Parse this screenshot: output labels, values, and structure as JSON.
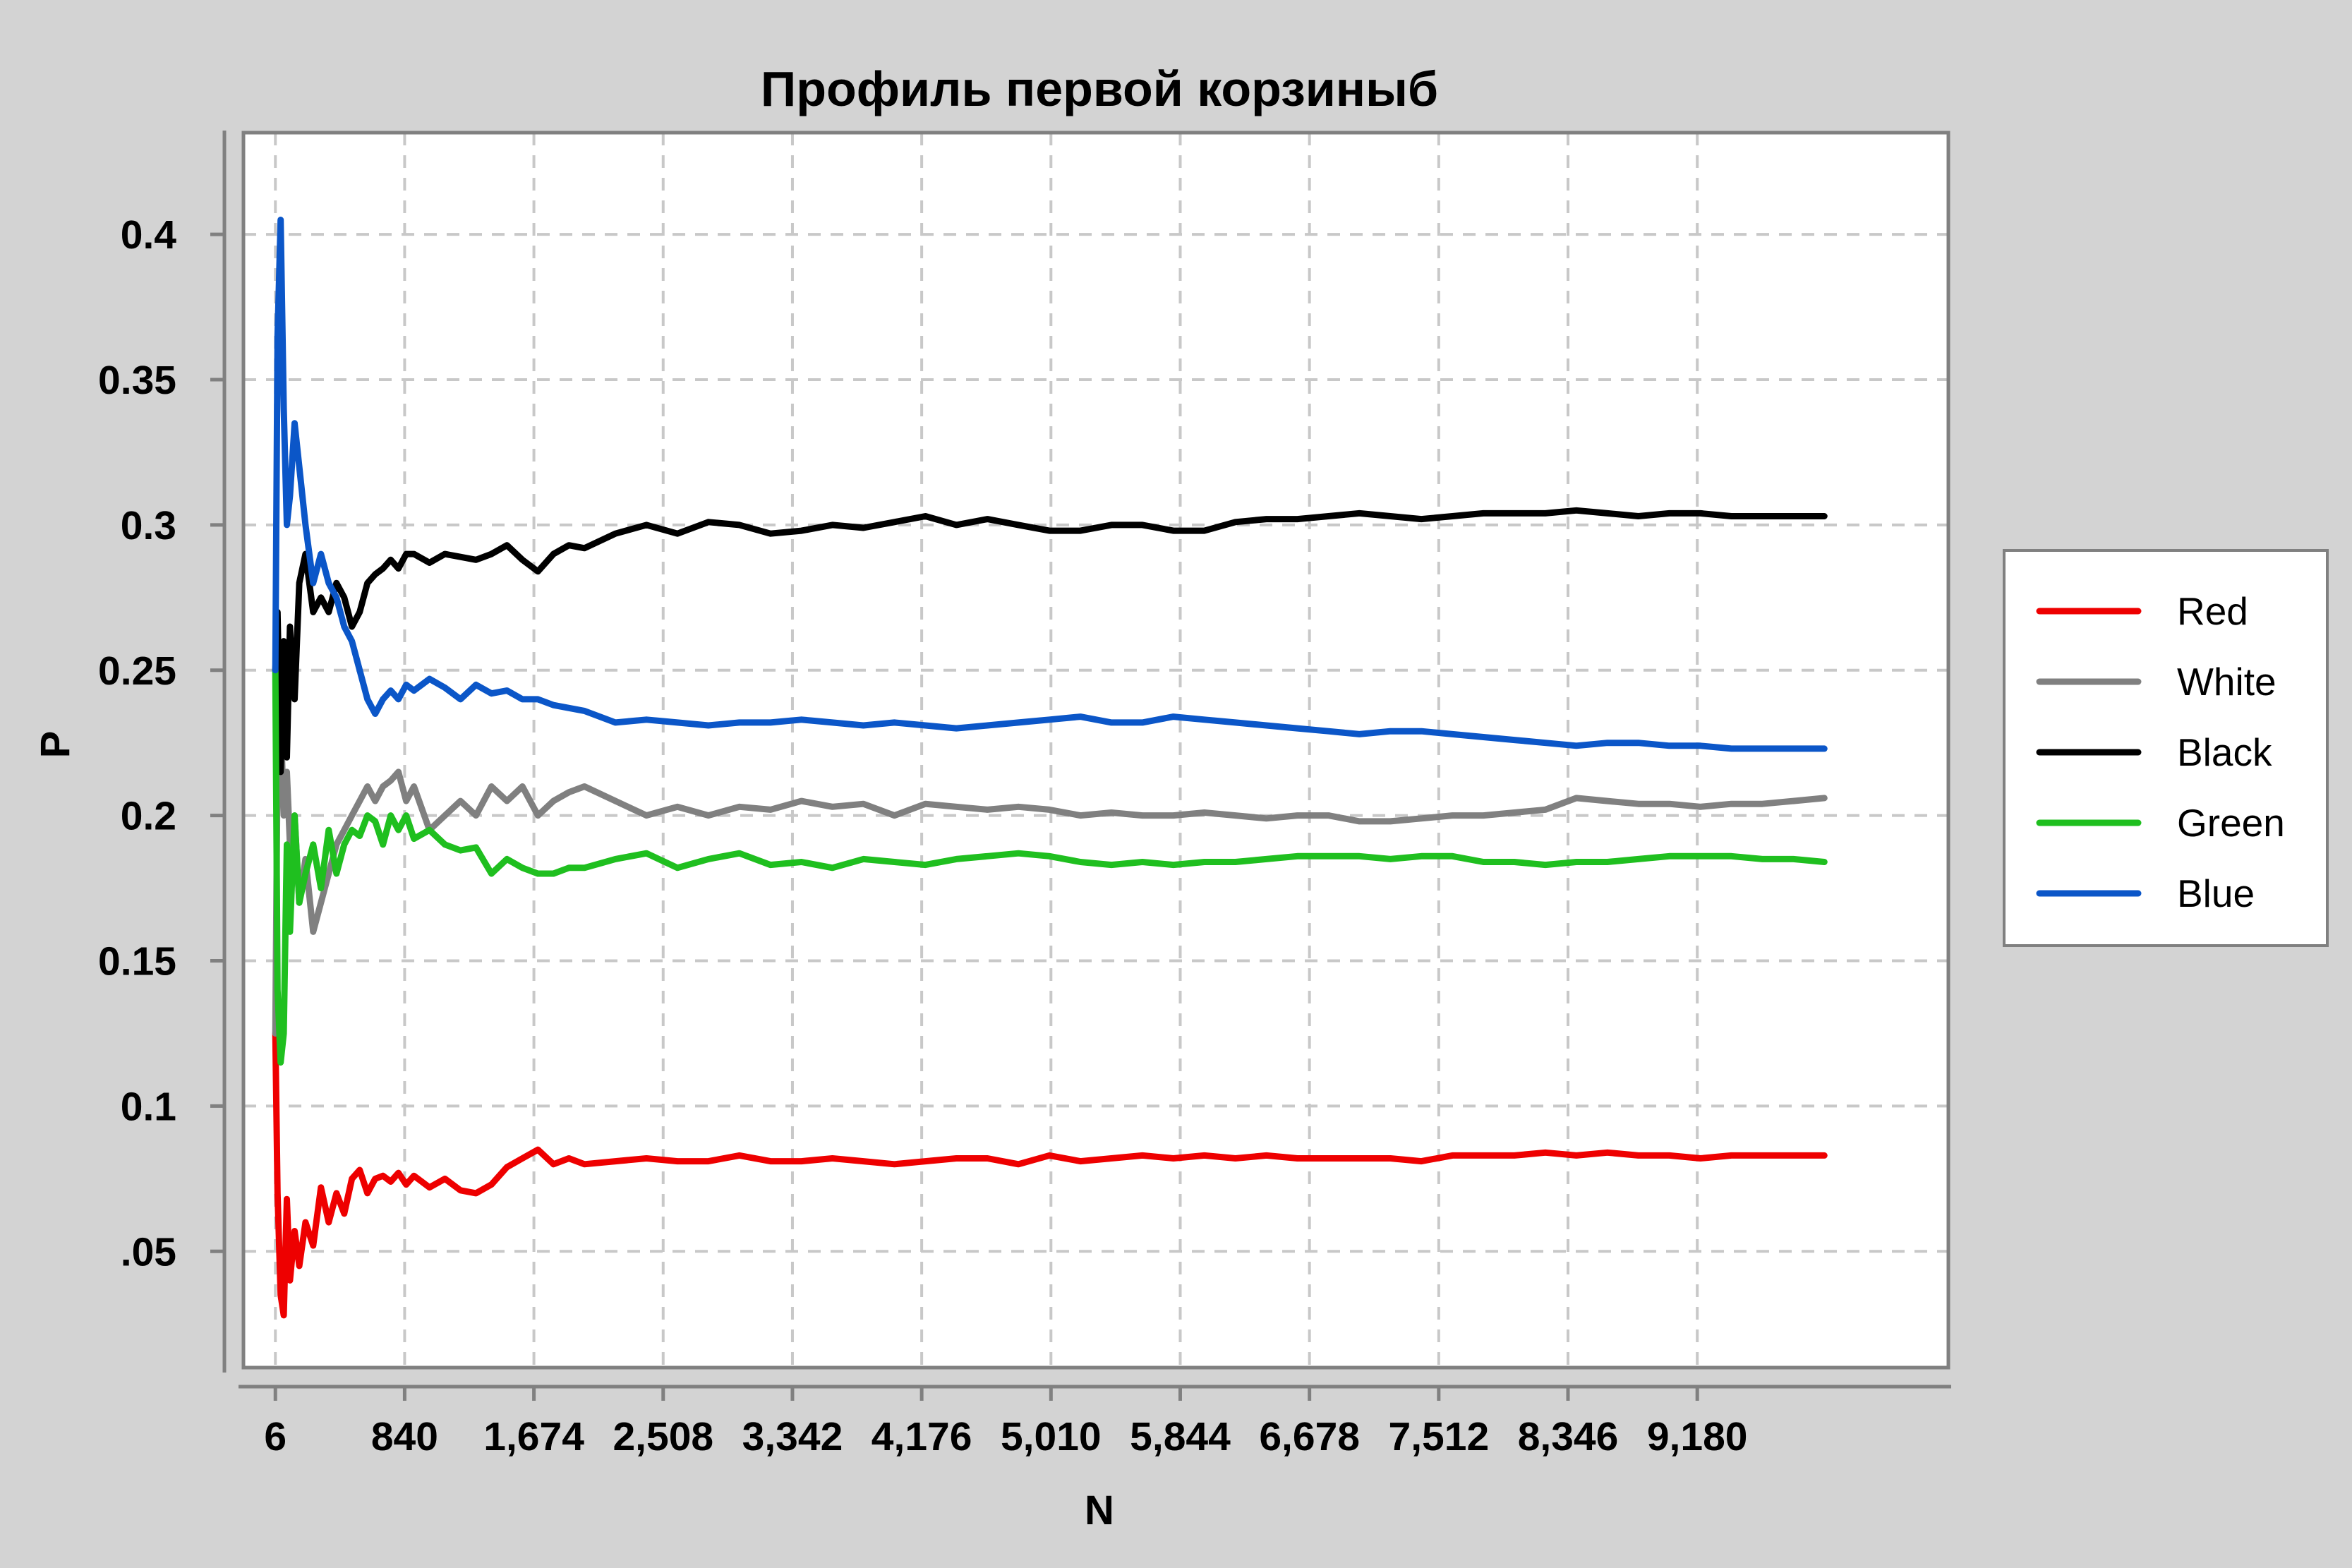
{
  "colors": {
    "background": "#d3d3d3",
    "plot_background": "#ffffff",
    "frame": "#808080",
    "grid": "#c8c8c8"
  },
  "chart_data": {
    "type": "line",
    "title": "Профиль первой корзиныб",
    "xlabel": "N",
    "ylabel": "P",
    "xlim": [
      -200,
      10800
    ],
    "ylim": [
      0.01,
      0.435
    ],
    "x_ticks": [
      6,
      840,
      1674,
      2508,
      3342,
      4176,
      5010,
      5844,
      6678,
      7512,
      8346,
      9180
    ],
    "x_tick_labels": [
      "6",
      "840",
      "1,674",
      "2,508",
      "3,342",
      "4,176",
      "5,010",
      "5,844",
      "6,678",
      "7,512",
      "8,346",
      "9,180"
    ],
    "y_ticks": [
      0.05,
      0.1,
      0.15,
      0.2,
      0.25,
      0.3,
      0.35,
      0.4
    ],
    "y_tick_labels": [
      ".05",
      "0.1",
      "0.15",
      "0.2",
      "0.25",
      "0.3",
      "0.35",
      "0.4"
    ],
    "grid": true,
    "grid_style": "dashed",
    "legend_position": "right",
    "series": [
      {
        "name": "Red",
        "color": "#ee0000",
        "x": [
          6,
          20,
          40,
          60,
          80,
          100,
          130,
          160,
          200,
          250,
          300,
          350,
          400,
          450,
          500,
          550,
          600,
          650,
          700,
          750,
          800,
          850,
          900,
          1000,
          1100,
          1200,
          1300,
          1400,
          1500,
          1600,
          1700,
          1800,
          1900,
          2000,
          2200,
          2400,
          2600,
          2800,
          3000,
          3200,
          3400,
          3600,
          3800,
          4000,
          4200,
          4400,
          4600,
          4800,
          5000,
          5200,
          5400,
          5600,
          5800,
          6000,
          6200,
          6400,
          6600,
          6800,
          7000,
          7200,
          7400,
          7600,
          7800,
          8000,
          8200,
          8400,
          8600,
          8800,
          9000,
          9200,
          9400,
          9600,
          9800,
          10000
        ],
        "y": [
          0.125,
          0.07,
          0.035,
          0.028,
          0.068,
          0.04,
          0.057,
          0.045,
          0.06,
          0.052,
          0.072,
          0.06,
          0.07,
          0.063,
          0.075,
          0.078,
          0.07,
          0.075,
          0.076,
          0.074,
          0.077,
          0.073,
          0.076,
          0.072,
          0.075,
          0.071,
          0.07,
          0.073,
          0.079,
          0.082,
          0.085,
          0.08,
          0.082,
          0.08,
          0.081,
          0.082,
          0.081,
          0.081,
          0.083,
          0.081,
          0.081,
          0.082,
          0.081,
          0.08,
          0.081,
          0.082,
          0.082,
          0.08,
          0.083,
          0.081,
          0.082,
          0.083,
          0.082,
          0.083,
          0.082,
          0.083,
          0.082,
          0.082,
          0.082,
          0.082,
          0.081,
          0.083,
          0.083,
          0.083,
          0.084,
          0.083,
          0.084,
          0.083,
          0.083,
          0.082,
          0.083,
          0.083,
          0.083,
          0.083
        ]
      },
      {
        "name": "White",
        "color": "#808080",
        "x": [
          6,
          20,
          40,
          60,
          80,
          100,
          130,
          160,
          200,
          250,
          300,
          350,
          400,
          450,
          500,
          550,
          600,
          650,
          700,
          750,
          800,
          850,
          900,
          1000,
          1100,
          1200,
          1300,
          1400,
          1500,
          1600,
          1700,
          1800,
          1900,
          2000,
          2200,
          2400,
          2600,
          2800,
          3000,
          3200,
          3400,
          3600,
          3800,
          4000,
          4200,
          4400,
          4600,
          4800,
          5000,
          5200,
          5400,
          5600,
          5800,
          6000,
          6200,
          6400,
          6600,
          6800,
          7000,
          7200,
          7400,
          7600,
          7800,
          8000,
          8200,
          8400,
          8600,
          8800,
          9000,
          9200,
          9400,
          9600,
          9800,
          10000
        ],
        "y": [
          0.125,
          0.22,
          0.235,
          0.2,
          0.215,
          0.19,
          0.2,
          0.17,
          0.185,
          0.16,
          0.17,
          0.18,
          0.19,
          0.195,
          0.2,
          0.205,
          0.21,
          0.205,
          0.21,
          0.212,
          0.215,
          0.205,
          0.21,
          0.195,
          0.2,
          0.205,
          0.2,
          0.21,
          0.205,
          0.21,
          0.2,
          0.205,
          0.208,
          0.21,
          0.205,
          0.2,
          0.203,
          0.2,
          0.203,
          0.202,
          0.205,
          0.203,
          0.204,
          0.2,
          0.204,
          0.203,
          0.202,
          0.203,
          0.202,
          0.2,
          0.201,
          0.2,
          0.2,
          0.201,
          0.2,
          0.199,
          0.2,
          0.2,
          0.198,
          0.198,
          0.199,
          0.2,
          0.2,
          0.201,
          0.202,
          0.206,
          0.205,
          0.204,
          0.204,
          0.203,
          0.204,
          0.204,
          0.205,
          0.206
        ]
      },
      {
        "name": "Black",
        "color": "#000000",
        "x": [
          6,
          20,
          40,
          60,
          80,
          100,
          130,
          160,
          200,
          250,
          300,
          350,
          400,
          450,
          500,
          550,
          600,
          650,
          700,
          750,
          800,
          850,
          900,
          1000,
          1100,
          1200,
          1300,
          1400,
          1500,
          1600,
          1700,
          1800,
          1900,
          2000,
          2200,
          2400,
          2600,
          2800,
          3000,
          3200,
          3400,
          3600,
          3800,
          4000,
          4200,
          4400,
          4600,
          4800,
          5000,
          5200,
          5400,
          5600,
          5800,
          6000,
          6200,
          6400,
          6600,
          6800,
          7000,
          7200,
          7400,
          7600,
          7800,
          8000,
          8200,
          8400,
          8600,
          8800,
          9000,
          9200,
          9400,
          9600,
          9800,
          10000
        ],
        "y": [
          0.25,
          0.27,
          0.215,
          0.26,
          0.22,
          0.265,
          0.24,
          0.28,
          0.29,
          0.27,
          0.275,
          0.27,
          0.28,
          0.275,
          0.265,
          0.27,
          0.28,
          0.283,
          0.285,
          0.288,
          0.285,
          0.29,
          0.29,
          0.287,
          0.29,
          0.289,
          0.288,
          0.29,
          0.293,
          0.288,
          0.284,
          0.29,
          0.293,
          0.292,
          0.297,
          0.3,
          0.297,
          0.301,
          0.3,
          0.297,
          0.298,
          0.3,
          0.299,
          0.301,
          0.303,
          0.3,
          0.302,
          0.3,
          0.298,
          0.298,
          0.3,
          0.3,
          0.298,
          0.298,
          0.301,
          0.302,
          0.302,
          0.303,
          0.304,
          0.303,
          0.302,
          0.303,
          0.304,
          0.304,
          0.304,
          0.305,
          0.304,
          0.303,
          0.304,
          0.304,
          0.303,
          0.303,
          0.303,
          0.303
        ]
      },
      {
        "name": "Green",
        "color": "#1fbf1f",
        "x": [
          6,
          20,
          40,
          60,
          80,
          100,
          130,
          160,
          200,
          250,
          300,
          350,
          400,
          450,
          500,
          550,
          600,
          650,
          700,
          750,
          800,
          850,
          900,
          1000,
          1100,
          1200,
          1300,
          1400,
          1500,
          1600,
          1700,
          1800,
          1900,
          2000,
          2200,
          2400,
          2600,
          2800,
          3000,
          3200,
          3400,
          3600,
          3800,
          4000,
          4200,
          4400,
          4600,
          4800,
          5000,
          5200,
          5400,
          5600,
          5800,
          6000,
          6200,
          6400,
          6600,
          6800,
          7000,
          7200,
          7400,
          7600,
          7800,
          8000,
          8200,
          8400,
          8600,
          8800,
          9000,
          9200,
          9400,
          9600,
          9800,
          10000
        ],
        "y": [
          0.25,
          0.14,
          0.115,
          0.125,
          0.19,
          0.16,
          0.2,
          0.17,
          0.18,
          0.19,
          0.175,
          0.195,
          0.18,
          0.19,
          0.195,
          0.193,
          0.2,
          0.198,
          0.19,
          0.2,
          0.195,
          0.2,
          0.192,
          0.195,
          0.19,
          0.188,
          0.189,
          0.18,
          0.185,
          0.182,
          0.18,
          0.18,
          0.182,
          0.182,
          0.185,
          0.187,
          0.182,
          0.185,
          0.187,
          0.183,
          0.184,
          0.182,
          0.185,
          0.184,
          0.183,
          0.185,
          0.186,
          0.187,
          0.186,
          0.184,
          0.183,
          0.184,
          0.183,
          0.184,
          0.184,
          0.185,
          0.186,
          0.186,
          0.186,
          0.185,
          0.186,
          0.186,
          0.184,
          0.184,
          0.183,
          0.184,
          0.184,
          0.185,
          0.186,
          0.186,
          0.186,
          0.185,
          0.185,
          0.184
        ]
      },
      {
        "name": "Blue",
        "color": "#0b56c8",
        "x": [
          6,
          20,
          40,
          60,
          80,
          100,
          130,
          160,
          200,
          250,
          300,
          350,
          400,
          450,
          500,
          550,
          600,
          650,
          700,
          750,
          800,
          850,
          900,
          1000,
          1100,
          1200,
          1300,
          1400,
          1500,
          1600,
          1700,
          1800,
          1900,
          2000,
          2200,
          2400,
          2600,
          2800,
          3000,
          3200,
          3400,
          3600,
          3800,
          4000,
          4200,
          4400,
          4600,
          4800,
          5000,
          5200,
          5400,
          5600,
          5800,
          6000,
          6200,
          6400,
          6600,
          6800,
          7000,
          7200,
          7400,
          7600,
          7800,
          8000,
          8200,
          8400,
          8600,
          8800,
          9000,
          9200,
          9400,
          9600,
          9800,
          10000
        ],
        "y": [
          0.25,
          0.365,
          0.405,
          0.34,
          0.3,
          0.31,
          0.335,
          0.32,
          0.3,
          0.28,
          0.29,
          0.28,
          0.275,
          0.265,
          0.26,
          0.25,
          0.24,
          0.235,
          0.24,
          0.243,
          0.24,
          0.245,
          0.243,
          0.247,
          0.244,
          0.24,
          0.245,
          0.242,
          0.243,
          0.24,
          0.24,
          0.238,
          0.237,
          0.236,
          0.232,
          0.233,
          0.232,
          0.231,
          0.232,
          0.232,
          0.233,
          0.232,
          0.231,
          0.232,
          0.231,
          0.23,
          0.231,
          0.232,
          0.233,
          0.234,
          0.232,
          0.232,
          0.234,
          0.233,
          0.232,
          0.231,
          0.23,
          0.229,
          0.228,
          0.229,
          0.229,
          0.228,
          0.227,
          0.226,
          0.225,
          0.224,
          0.225,
          0.225,
          0.224,
          0.224,
          0.223,
          0.223,
          0.223,
          0.223
        ]
      }
    ]
  }
}
